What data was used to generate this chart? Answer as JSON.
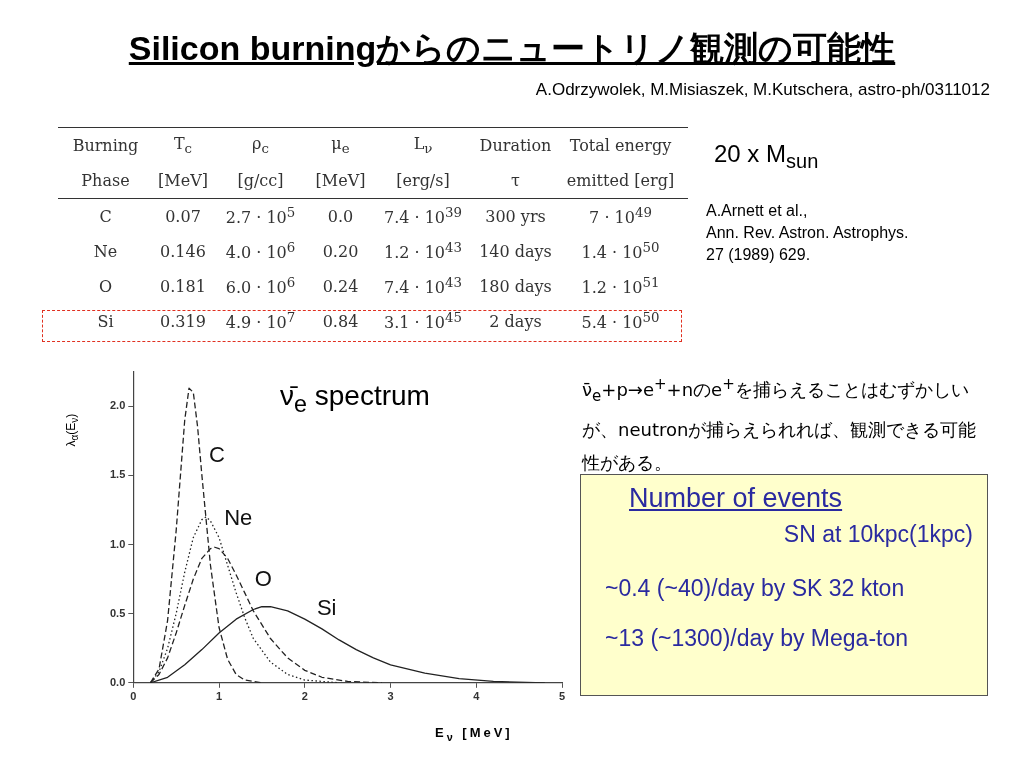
{
  "chart_data": [
    {
      "type": "other",
      "title": "Silicon burningからのニュートリノ観測の可能性",
      "subtitle": "A.Odrzywolek, M.Misiaszek, M.Kutschera, astro-ph/0311012",
      "annotations": [
        "Burning",
        "T$_{c}$",
        "ρ$_{c}$",
        "μ$_{e}$",
        "L$_{ν}$",
        "Duration",
        "Total energy",
        "Phase",
        "[MeV]",
        "[g/cc]",
        "[MeV]",
        "[erg/s]",
        "τ",
        "emitted [erg]",
        "C",
        "0.07",
        "2.7 · 10$^{5}$",
        "0.0",
        "7.4 · 10$^{39}$",
        "300 yrs",
        "7 · 10$^{49}$",
        "Ne",
        "0.146",
        "4.0 · 10$^{6}$",
        "0.20",
        "1.2 · 10$^{43}$",
        "140 days",
        "1.4 · 10$^{50}$",
        "O",
        "0.181",
        "6.0 · 10$^{6}$",
        "0.24",
        "7.4 · 10$^{43}$",
        "180 days",
        "1.2 · 10$^{51}$",
        "Si",
        "0.319",
        "4.9 · 10$^{7}$",
        "0.84",
        "3.1 · 10$^{45}$",
        "2 days",
        "5.4 · 10$^{50}$",
        "20 x M$_{sun}$",
        "A.Arnett et al.,\nAnn. Rev. Astron. Astrophys.\n27 (1989) 629."
      ]
    },
    {
      "type": "line",
      "title": "ν̄$_{e}$ spectrum",
      "xlabel": "E$_{ν}$ [MeV]",
      "ylabel": "λ$_{α}$(E$_{ν}$)",
      "xlim": [
        0,
        5
      ],
      "ylim": [
        0,
        2.25
      ],
      "xticks": [
        0,
        1,
        2,
        3,
        4,
        5
      ],
      "yticks": [
        {
          "value": 0,
          "label": "0.0"
        },
        {
          "value": 0.5,
          "label": "0.5"
        },
        {
          "value": 1,
          "label": "1.0"
        },
        {
          "value": 1.5,
          "label": "1.5"
        },
        {
          "value": 2,
          "label": "2.0"
        }
      ],
      "grid": false,
      "legend": false,
      "marker": "none",
      "series": [
        {
          "name": "C",
          "color": "#222222",
          "line_style": "dashed",
          "x": [
            0.2,
            0.3,
            0.4,
            0.5,
            0.55,
            0.6,
            0.65,
            0.7,
            0.75,
            0.8,
            0.9,
            1.0,
            1.1,
            1.2,
            1.3,
            1.5
          ],
          "values": [
            0,
            0.1,
            0.45,
            1.1,
            1.5,
            1.9,
            2.13,
            2.1,
            1.85,
            1.5,
            0.85,
            0.4,
            0.17,
            0.06,
            0.02,
            0
          ]
        },
        {
          "name": "Ne",
          "color": "#222222",
          "line_style": "dotted",
          "x": [
            0.2,
            0.3,
            0.4,
            0.5,
            0.6,
            0.7,
            0.8,
            0.85,
            0.9,
            1.0,
            1.1,
            1.2,
            1.3,
            1.4,
            1.6,
            1.8,
            2.0,
            2.4
          ],
          "values": [
            0,
            0.08,
            0.25,
            0.5,
            0.8,
            1.05,
            1.18,
            1.2,
            1.17,
            1.05,
            0.85,
            0.65,
            0.47,
            0.32,
            0.15,
            0.06,
            0.02,
            0
          ]
        },
        {
          "name": "O",
          "color": "#222222",
          "line_style": "dashed",
          "x": [
            0.2,
            0.3,
            0.4,
            0.5,
            0.6,
            0.7,
            0.8,
            0.9,
            0.95,
            1.0,
            1.1,
            1.2,
            1.3,
            1.4,
            1.6,
            1.8,
            2.0,
            2.2,
            2.5,
            2.9
          ],
          "values": [
            0,
            0.06,
            0.18,
            0.36,
            0.56,
            0.75,
            0.9,
            0.97,
            0.98,
            0.97,
            0.9,
            0.78,
            0.65,
            0.52,
            0.32,
            0.18,
            0.09,
            0.04,
            0.01,
            0
          ]
        },
        {
          "name": "Si",
          "color": "#222222",
          "line_style": "solid",
          "x": [
            0.2,
            0.4,
            0.6,
            0.8,
            1.0,
            1.2,
            1.4,
            1.5,
            1.6,
            1.8,
            2.0,
            2.2,
            2.4,
            2.6,
            2.8,
            3.0,
            3.4,
            3.8,
            4.2,
            4.8
          ],
          "values": [
            0,
            0.04,
            0.13,
            0.24,
            0.36,
            0.46,
            0.53,
            0.55,
            0.55,
            0.52,
            0.46,
            0.39,
            0.31,
            0.24,
            0.18,
            0.13,
            0.07,
            0.03,
            0.01,
            0
          ]
        }
      ]
    },
    {
      "type": "other",
      "title": "Number of events",
      "annotations": [
        "ν̄$_{e}$+p→e$^{+}$+nのe$^{+}$を捕らえることはむずかしいが、neutronが捕らえられれば、観測できる可能性がある。",
        "SN at 10kpc(1kpc)",
        "~0.4 (~40)/day by SK 32 kton",
        "~13 (~1300)/day by Mega-ton"
      ]
    }
  ]
}
